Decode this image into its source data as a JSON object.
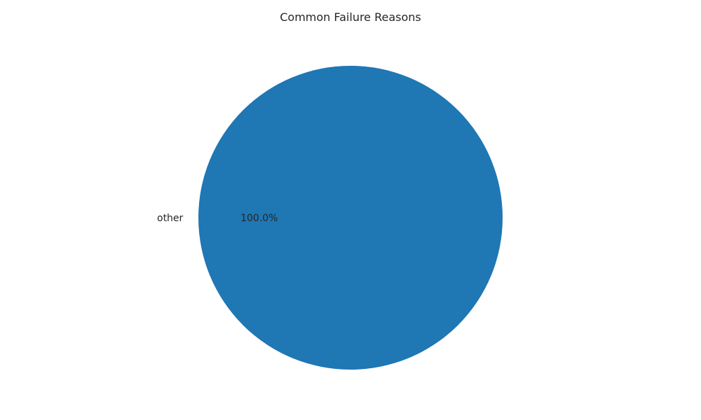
{
  "chart_data": {
    "type": "pie",
    "title": "Common Failure Reasons",
    "slices": [
      {
        "label": "other",
        "value": 100.0,
        "percent_label": "100.0%",
        "color": "#1f77b4"
      }
    ]
  }
}
